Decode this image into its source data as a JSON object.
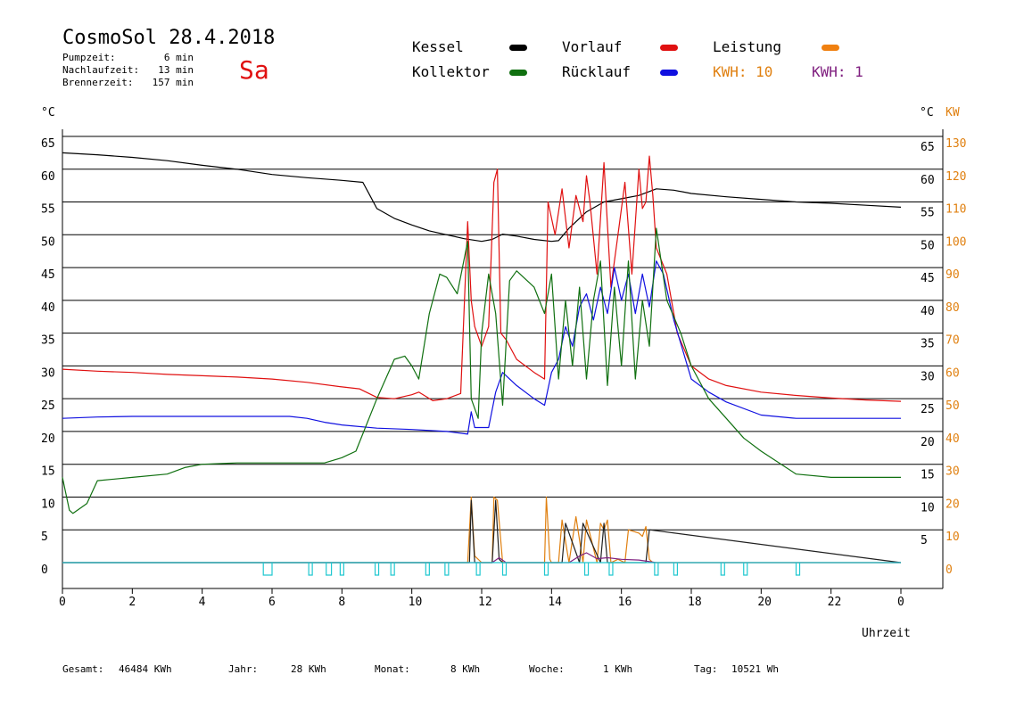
{
  "header": {
    "title": "CosmoSol 28.4.2018",
    "weekday": "Sa",
    "stats": [
      {
        "label": "Pumpzeit:",
        "value": "6 min"
      },
      {
        "label": "Nachlaufzeit:",
        "value": "13 min"
      },
      {
        "label": "Brennerzeit:",
        "value": "157 min"
      }
    ]
  },
  "legend": [
    {
      "label": "Kessel",
      "color": "#000000"
    },
    {
      "label": "Vorlauf",
      "color": "#e01010"
    },
    {
      "label": "Leistung",
      "color": "#f08010"
    },
    {
      "label": "Kollektor",
      "color": "#107010"
    },
    {
      "label": "Rücklauf",
      "color": "#1010e0"
    }
  ],
  "kwh": [
    {
      "text": "KWH: 10",
      "color": "#e08010"
    },
    {
      "text": "KWH: 1",
      "color": "#802080"
    }
  ],
  "footer": [
    {
      "label": "Gesamt:",
      "value": "46484 KWh"
    },
    {
      "label": "Jahr:",
      "value": "28 KWh"
    },
    {
      "label": "Monat:",
      "value": "8 KWh"
    },
    {
      "label": "Woche:",
      "value": "1 KWh"
    },
    {
      "label": "Tag:",
      "value": "10521 Wh"
    }
  ],
  "chart_data": {
    "type": "line",
    "xlabel": "Uhrzeit",
    "y_left_unit": "°C",
    "y_right_unit_temp": "°C",
    "y_right_unit_power": "KW",
    "x_ticks": [
      "0",
      "2",
      "4",
      "6",
      "8",
      "10",
      "12",
      "14",
      "16",
      "18",
      "20",
      "22",
      "0"
    ],
    "x_range": [
      0,
      24
    ],
    "y_left_ticks": [
      "65",
      "60",
      "55",
      "50",
      "45",
      "40",
      "35",
      "30",
      "25",
      "20",
      "15",
      "10",
      "5",
      "0"
    ],
    "y_right_temp_ticks": [
      "65",
      "60",
      "55",
      "50",
      "45",
      "40",
      "35",
      "30",
      "25",
      "20",
      "15",
      "10",
      "5"
    ],
    "y_right_power_ticks": [
      "130",
      "120",
      "110",
      "100",
      "90",
      "80",
      "70",
      "60",
      "50",
      "40",
      "30",
      "20",
      "10",
      "0"
    ],
    "ylim": [
      0,
      65
    ],
    "series": [
      {
        "name": "Kessel",
        "color": "#000000",
        "x": [
          0,
          1,
          2,
          3,
          4,
          5,
          6,
          7,
          8,
          8.6,
          8.8,
          9,
          9.5,
          10,
          10.5,
          11,
          11.5,
          12,
          12.3,
          12.6,
          13,
          13.5,
          14,
          14.2,
          14.5,
          15,
          15.5,
          16,
          16.5,
          17,
          17.5,
          18,
          19,
          20,
          21,
          22,
          23,
          24
        ],
        "y": [
          62.5,
          62.2,
          61.8,
          61.3,
          60.6,
          60,
          59.2,
          58.7,
          58.3,
          58,
          56,
          54,
          52.5,
          51.5,
          50.6,
          50,
          49.4,
          49,
          49.3,
          50.1,
          49.8,
          49.3,
          49,
          49.1,
          51,
          53.5,
          55,
          55.5,
          56,
          57,
          56.8,
          56.3,
          55.8,
          55.4,
          55,
          54.8,
          54.5,
          54.2
        ]
      },
      {
        "name": "Vorlauf",
        "color": "#e01010",
        "x": [
          0,
          1,
          2,
          3,
          4,
          5,
          6,
          7,
          8,
          8.5,
          9,
          9.5,
          10,
          10.2,
          10.6,
          11,
          11.4,
          11.6,
          11.7,
          11.8,
          12,
          12.2,
          12.35,
          12.45,
          12.55,
          12.7,
          13,
          13.5,
          13.8,
          13.9,
          14.1,
          14.3,
          14.5,
          14.7,
          14.9,
          15,
          15.1,
          15.3,
          15.5,
          15.7,
          15.9,
          16.1,
          16.3,
          16.5,
          16.6,
          16.7,
          16.8,
          16.9,
          17,
          17.3,
          17.6,
          18,
          18.5,
          19,
          20,
          21,
          22,
          23,
          24
        ],
        "y": [
          29.5,
          29.2,
          29,
          28.7,
          28.5,
          28.3,
          28,
          27.5,
          26.8,
          26.5,
          25.2,
          25,
          25.6,
          26,
          24.7,
          25,
          25.8,
          52,
          40,
          36,
          33,
          36,
          58,
          60,
          35,
          34,
          31,
          29,
          28,
          55,
          50,
          57,
          48,
          56,
          52,
          59,
          55,
          44,
          61,
          42,
          50,
          58,
          44,
          60,
          54,
          55,
          62,
          56,
          48,
          44,
          35,
          30,
          28,
          27,
          26,
          25.5,
          25.1,
          24.8,
          24.6
        ]
      },
      {
        "name": "Rücklauf",
        "color": "#1010e0",
        "x": [
          0,
          1,
          2,
          3,
          4,
          5,
          6,
          6.5,
          7,
          7.5,
          8,
          9,
          10,
          11,
          11.6,
          11.7,
          11.8,
          12,
          12.2,
          12.4,
          12.6,
          12.8,
          13,
          13.5,
          13.8,
          14,
          14.2,
          14.4,
          14.6,
          14.8,
          15,
          15.2,
          15.4,
          15.6,
          15.8,
          16,
          16.2,
          16.4,
          16.6,
          16.8,
          17,
          17.2,
          17.5,
          18,
          18.5,
          19,
          20,
          21,
          22,
          23,
          24
        ],
        "y": [
          22,
          22.2,
          22.3,
          22.3,
          22.3,
          22.3,
          22.3,
          22.3,
          22,
          21.4,
          21,
          20.5,
          20.3,
          20,
          19.6,
          23,
          20.6,
          20.6,
          20.6,
          26,
          29,
          28,
          27,
          25,
          24,
          29,
          31,
          36,
          33,
          39,
          41,
          37,
          42,
          38,
          45,
          40,
          44,
          38,
          44,
          39,
          46,
          44,
          37,
          28,
          26,
          24.5,
          22.5,
          22,
          22,
          22,
          22
        ]
      },
      {
        "name": "Kollektor",
        "color": "#107010",
        "x": [
          0,
          0.2,
          0.3,
          0.7,
          1,
          2,
          3,
          3.5,
          4,
          5,
          6,
          7,
          7.5,
          8,
          8.4,
          9,
          9.5,
          9.8,
          10,
          10.2,
          10.5,
          10.8,
          11,
          11.3,
          11.6,
          11.7,
          11.9,
          12,
          12.2,
          12.4,
          12.6,
          12.8,
          13,
          13.5,
          13.8,
          14,
          14.2,
          14.4,
          14.6,
          14.8,
          15,
          15.2,
          15.4,
          15.6,
          15.8,
          16,
          16.2,
          16.4,
          16.6,
          16.8,
          17,
          17.3,
          17.7,
          18,
          18.5,
          19,
          19.5,
          20,
          21,
          22,
          23,
          24
        ],
        "y": [
          13,
          8,
          7.5,
          9,
          12.5,
          13,
          13.5,
          14.5,
          15,
          15.2,
          15.2,
          15.2,
          15.2,
          16,
          17,
          25,
          31,
          31.5,
          30,
          28,
          38,
          44,
          43.5,
          41,
          49,
          25,
          22,
          35,
          44,
          38,
          24,
          43,
          44.5,
          42,
          38,
          44,
          28,
          40,
          30,
          42,
          28,
          40,
          46,
          27,
          42,
          30,
          46,
          28,
          40,
          33,
          51,
          40,
          35,
          30,
          25,
          22,
          19,
          17,
          13.5,
          13,
          13,
          13
        ]
      },
      {
        "name": "Leistung",
        "color": "#e08010",
        "axis": "power",
        "x": [
          0,
          11.6,
          11.7,
          11.8,
          12,
          12.3,
          12.35,
          12.45,
          12.6,
          12.7,
          13.8,
          13.85,
          13.95,
          14,
          14.2,
          14.3,
          14.5,
          14.7,
          14.9,
          15,
          15.3,
          15.4,
          15.5,
          15.6,
          15.7,
          15.9,
          16.1,
          16.2,
          16.5,
          16.6,
          16.7,
          16.8,
          16.9,
          17,
          17.2,
          24
        ],
        "y": [
          0,
          0,
          20,
          2,
          0,
          0,
          20,
          19,
          0,
          0,
          0,
          20,
          1,
          0,
          0,
          13,
          0,
          14,
          0,
          13,
          0,
          12,
          10,
          13,
          0,
          1,
          0,
          10,
          9,
          8,
          11,
          1,
          0,
          0,
          0,
          0
        ]
      },
      {
        "name": "Kessel-Leistung",
        "color": "#202020",
        "axis": "power",
        "x": [
          0,
          11.65,
          11.7,
          11.8,
          12.3,
          12.4,
          12.5,
          12.6,
          14.3,
          14.4,
          14.8,
          14.9,
          15.4,
          15.5,
          15.6,
          16.7,
          16.8,
          24
        ],
        "y": [
          0,
          0,
          19,
          0,
          0,
          19,
          1,
          0,
          0,
          12,
          0,
          12,
          0,
          12,
          0,
          0,
          10,
          0
        ]
      },
      {
        "name": "KWH-1",
        "color": "#802080",
        "axis": "power",
        "x": [
          0,
          12.3,
          12.5,
          12.7,
          14.5,
          14.8,
          15,
          15.3,
          15.6,
          16,
          16.5,
          17,
          24
        ],
        "y": [
          0,
          0,
          1.5,
          0,
          0,
          2,
          3,
          1.2,
          1.5,
          1,
          0.8,
          0,
          0
        ]
      },
      {
        "name": "Pumpe",
        "color": "#20c8d0",
        "axis": "pump",
        "pulses": [
          [
            5.75,
            6.0
          ],
          [
            7.05,
            7.15
          ],
          [
            7.55,
            7.7
          ],
          [
            7.95,
            8.05
          ],
          [
            8.95,
            9.05
          ],
          [
            9.4,
            9.5
          ],
          [
            10.4,
            10.5
          ],
          [
            10.95,
            11.05
          ],
          [
            11.85,
            11.9
          ],
          [
            12.6,
            12.65
          ],
          [
            13.8,
            13.85
          ],
          [
            14.95,
            15.05
          ],
          [
            15.65,
            15.75
          ],
          [
            16.95,
            17.05
          ],
          [
            17.5,
            17.6
          ],
          [
            18.85,
            18.95
          ],
          [
            19.5,
            19.6
          ],
          [
            21.0,
            21.1
          ]
        ]
      }
    ]
  }
}
